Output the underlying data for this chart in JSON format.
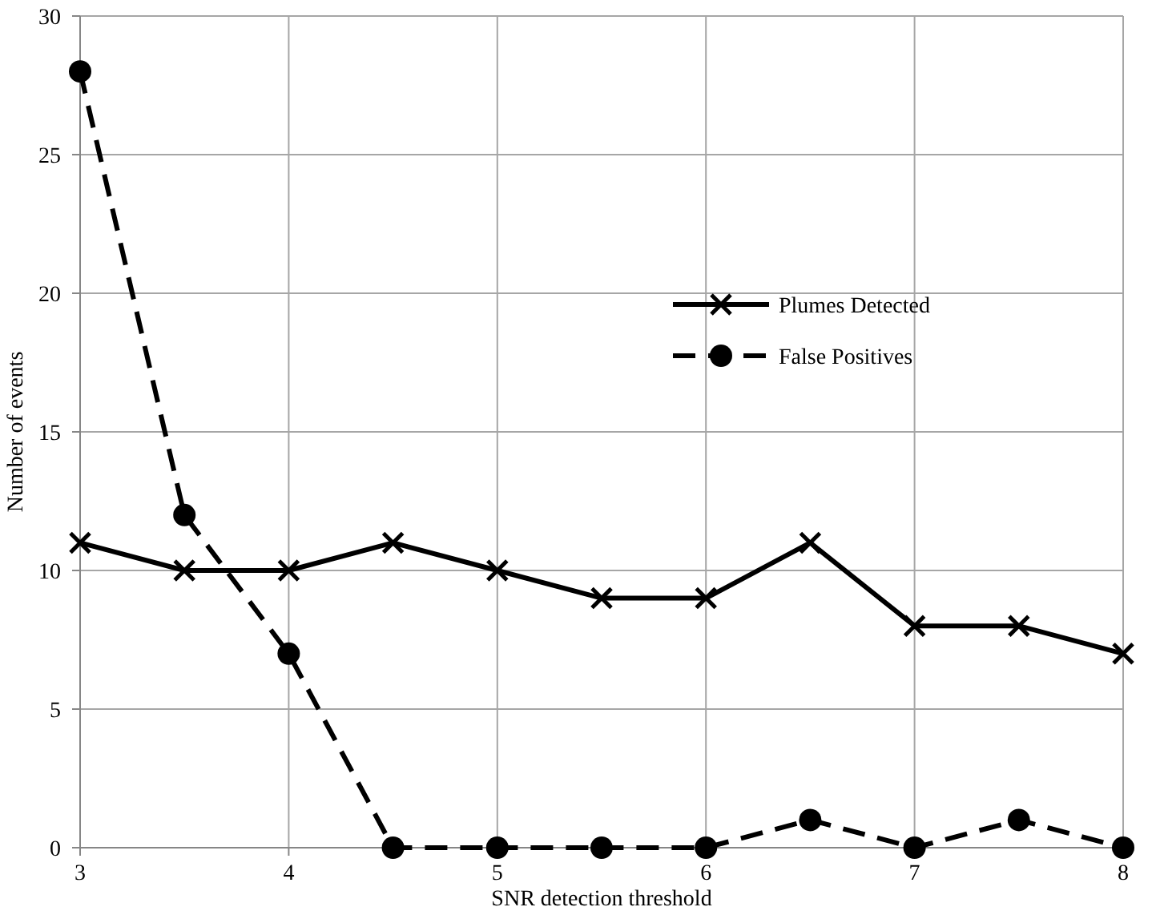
{
  "chart_data": {
    "type": "line",
    "xlabel": "SNR detection threshold",
    "ylabel": "Number of events",
    "x": [
      3,
      3.5,
      4,
      4.5,
      5,
      5.5,
      6,
      6.5,
      7,
      7.5,
      8
    ],
    "xlim": [
      3,
      8
    ],
    "xticks": [
      3,
      4,
      5,
      6,
      7,
      8
    ],
    "ylim": [
      0,
      30
    ],
    "yticks": [
      0,
      5,
      10,
      15,
      20,
      25,
      30
    ],
    "grid": true,
    "legend": "right",
    "series": [
      {
        "name": "Plumes Detected",
        "color": "#000000",
        "marker": "cross",
        "line_style": "solid",
        "values": [
          11,
          10,
          10,
          11,
          10,
          9,
          9,
          11,
          8,
          8,
          7
        ]
      },
      {
        "name": "False Positives",
        "color": "#000000",
        "marker": "circle",
        "line_style": "dashed",
        "values": [
          28,
          12,
          7,
          0,
          0,
          0,
          0,
          1,
          0,
          1,
          0
        ]
      }
    ]
  }
}
